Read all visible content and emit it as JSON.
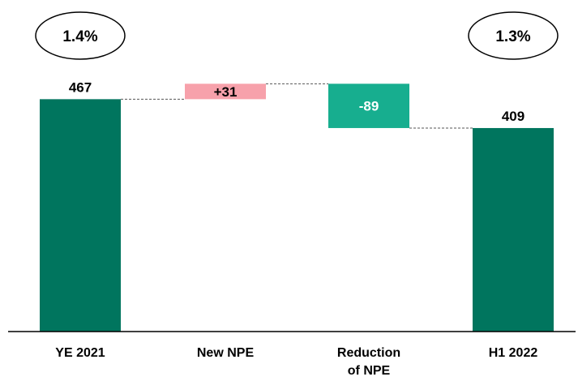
{
  "chart_data": {
    "type": "bar",
    "subtype": "waterfall",
    "categories": [
      "YE 2021",
      "New NPE",
      "Reduction of NPE",
      "H1 2022"
    ],
    "category_lines": [
      [
        "YE 2021"
      ],
      [
        "New NPE"
      ],
      [
        "Reduction",
        "of NPE"
      ],
      [
        "H1 2022"
      ]
    ],
    "steps": [
      {
        "label": "467",
        "kind": "total",
        "value": 467
      },
      {
        "label": "+31",
        "kind": "increase",
        "value": 31
      },
      {
        "label": "-89",
        "kind": "decrease",
        "value": -89
      },
      {
        "label": "409",
        "kind": "total",
        "value": 409
      }
    ],
    "ylim": [
      0,
      580
    ],
    "grid": false,
    "connectors": true,
    "annotations": [
      {
        "text": "1.4%",
        "anchor": "YE 2021"
      },
      {
        "text": "1.3%",
        "anchor": "H1 2022"
      }
    ],
    "colors": {
      "total": "#00755E",
      "increase": "#F7A1AB",
      "decrease": "#17AE8F",
      "axis": "#000000",
      "connector": "#555555"
    }
  }
}
